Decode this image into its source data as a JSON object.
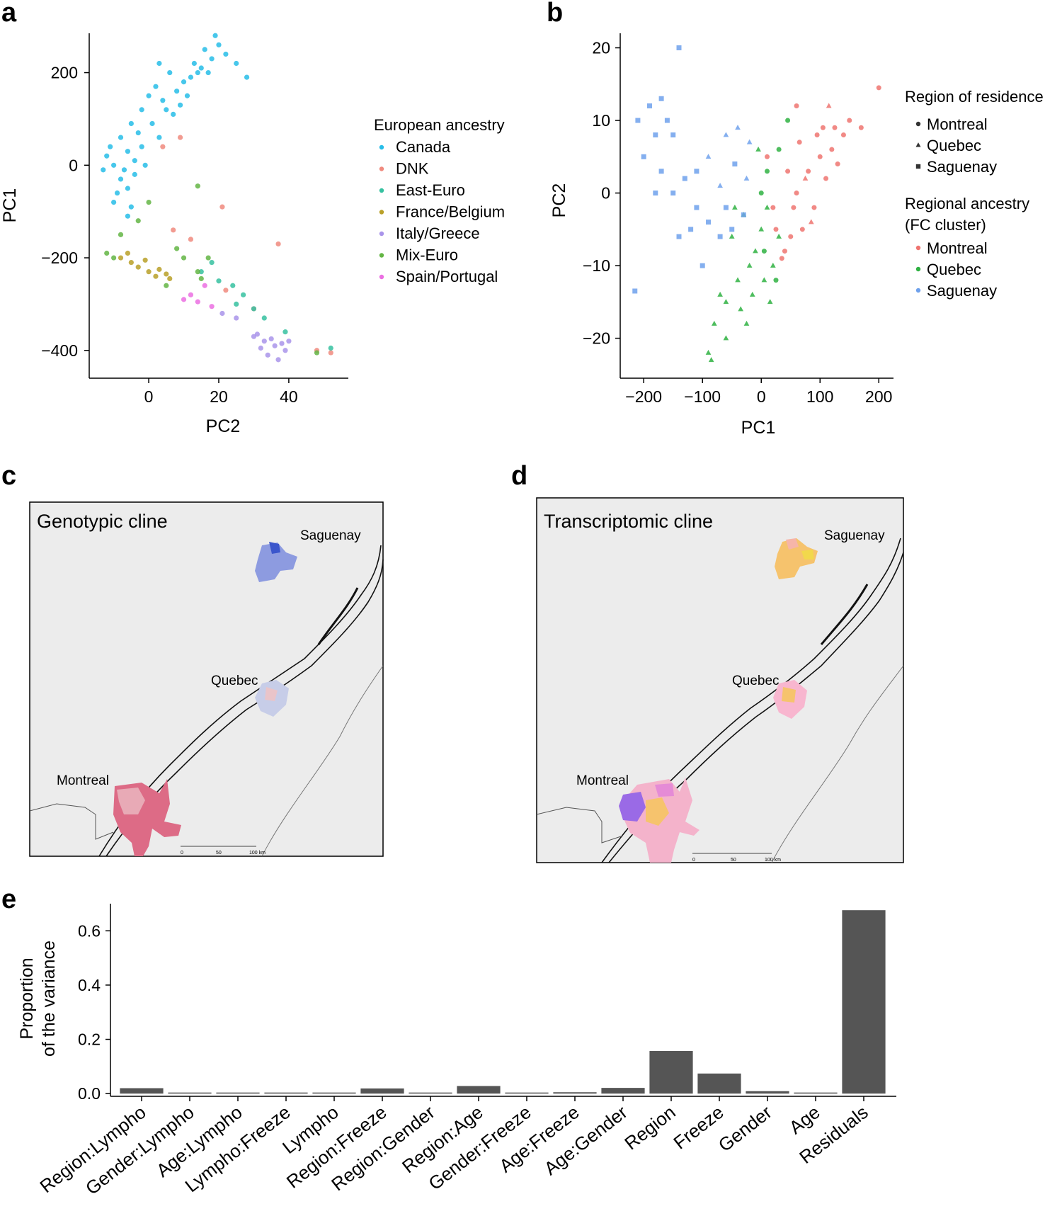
{
  "panels": {
    "a": {
      "letter": "a"
    },
    "b": {
      "letter": "b"
    },
    "c": {
      "letter": "c",
      "title": "Genotypic cline",
      "cities": [
        "Saguenay",
        "Quebec",
        "Montreal"
      ],
      "scalebar": [
        "0",
        "50",
        "100 km"
      ]
    },
    "d": {
      "letter": "d",
      "title": "Transcriptomic cline",
      "cities": [
        "Saguenay",
        "Quebec",
        "Montreal"
      ],
      "scalebar": [
        "0",
        "50",
        "100 km"
      ]
    },
    "e": {
      "letter": "e"
    }
  },
  "colors": {
    "Canada": "#27bde8",
    "DNK": "#f08a7e",
    "East-Euro": "#36c1a0",
    "France/Belgium": "#b9a028",
    "Italy/Greece": "#a994ea",
    "Mix-Euro": "#63b544",
    "Spain/Portugal": "#eb6fe2",
    "reg_Montreal": "#ef7470",
    "reg_Quebec": "#2fb142",
    "reg_Saguenay": "#6ea1ec",
    "bar": "#555555",
    "map_bg": "#ececec"
  },
  "chart_data": [
    {
      "panel": "a",
      "type": "scatter",
      "xlabel": "PC2",
      "ylabel": "PC1",
      "xlim": [
        -17,
        57
      ],
      "ylim": [
        -460,
        285
      ],
      "xticks": [
        0,
        20,
        40
      ],
      "yticks": [
        200,
        0,
        -200,
        -400
      ],
      "ytick_labels": [
        "200",
        "0",
        "−200",
        "−400"
      ],
      "legend_title": "European ancestry",
      "series": [
        {
          "name": "Canada",
          "points": [
            [
              -12,
              20
            ],
            [
              -10,
              0
            ],
            [
              -8,
              -30
            ],
            [
              -6,
              -50
            ],
            [
              -4,
              10
            ],
            [
              -8,
              60
            ],
            [
              -5,
              90
            ],
            [
              -2,
              120
            ],
            [
              0,
              150
            ],
            [
              2,
              170
            ],
            [
              5,
              120
            ],
            [
              8,
              160
            ],
            [
              12,
              190
            ],
            [
              15,
              210
            ],
            [
              18,
              230
            ],
            [
              20,
              260
            ],
            [
              22,
              240
            ],
            [
              25,
              220
            ],
            [
              14,
              200
            ],
            [
              10,
              180
            ],
            [
              6,
              200
            ],
            [
              3,
              220
            ],
            [
              -3,
              70
            ],
            [
              -7,
              -10
            ],
            [
              -9,
              -60
            ],
            [
              -6,
              -110
            ],
            [
              -10,
              -80
            ],
            [
              -4,
              -20
            ],
            [
              -2,
              40
            ],
            [
              1,
              90
            ],
            [
              4,
              140
            ],
            [
              7,
              110
            ],
            [
              9,
              130
            ],
            [
              16,
              250
            ],
            [
              19,
              280
            ],
            [
              28,
              190
            ],
            [
              -13,
              -10
            ],
            [
              -11,
              40
            ],
            [
              -5,
              -90
            ],
            [
              -1,
              0
            ],
            [
              13,
              220
            ],
            [
              17,
              200
            ],
            [
              11,
              150
            ],
            [
              3,
              60
            ],
            [
              -6,
              30
            ]
          ]
        },
        {
          "name": "DNK",
          "points": [
            [
              21,
              -90
            ],
            [
              37,
              -170
            ],
            [
              7,
              -140
            ],
            [
              12,
              -160
            ],
            [
              48,
              -400
            ],
            [
              52,
              -405
            ],
            [
              4,
              40
            ],
            [
              9,
              60
            ],
            [
              30,
              -310
            ],
            [
              22,
              -270
            ]
          ]
        },
        {
          "name": "East-Euro",
          "points": [
            [
              24,
              -260
            ],
            [
              27,
              -280
            ],
            [
              30,
              -310
            ],
            [
              33,
              -330
            ],
            [
              20,
              -250
            ],
            [
              25,
              -300
            ],
            [
              52,
              -395
            ],
            [
              39,
              -360
            ],
            [
              15,
              -230
            ],
            [
              18,
              -210
            ]
          ]
        },
        {
          "name": "France/Belgium",
          "points": [
            [
              -8,
              -200
            ],
            [
              -5,
              -210
            ],
            [
              -3,
              -220
            ],
            [
              0,
              -230
            ],
            [
              2,
              -240
            ],
            [
              5,
              -235
            ],
            [
              -1,
              -205
            ],
            [
              3,
              -225
            ],
            [
              -6,
              -190
            ],
            [
              6,
              -245
            ]
          ]
        },
        {
          "name": "Italy/Greece",
          "points": [
            [
              30,
              -370
            ],
            [
              33,
              -380
            ],
            [
              36,
              -390
            ],
            [
              39,
              -400
            ],
            [
              32,
              -395
            ],
            [
              35,
              -375
            ],
            [
              38,
              -385
            ],
            [
              34,
              -410
            ],
            [
              37,
              -420
            ],
            [
              31,
              -365
            ],
            [
              40,
              -380
            ],
            [
              21,
              -320
            ],
            [
              25,
              -330
            ]
          ]
        },
        {
          "name": "Mix-Euro",
          "points": [
            [
              -12,
              -190
            ],
            [
              -8,
              -150
            ],
            [
              -3,
              -120
            ],
            [
              0,
              -80
            ],
            [
              14,
              -45
            ],
            [
              10,
              -200
            ],
            [
              14,
              -230
            ],
            [
              48,
              -405
            ],
            [
              5,
              -260
            ],
            [
              -10,
              -200
            ],
            [
              8,
              -180
            ],
            [
              17,
              -200
            ],
            [
              15,
              -245
            ]
          ]
        },
        {
          "name": "Spain/Portugal",
          "points": [
            [
              10,
              -290
            ],
            [
              14,
              -295
            ],
            [
              16,
              -260
            ],
            [
              12,
              -280
            ],
            [
              18,
              -305
            ]
          ]
        }
      ]
    },
    {
      "panel": "b",
      "type": "scatter",
      "xlabel": "PC1",
      "ylabel": "PC2",
      "xlim": [
        -240,
        225
      ],
      "ylim": [
        -25.5,
        22
      ],
      "xticks": [
        -200,
        -100,
        0,
        100,
        200
      ],
      "xtick_labels": [
        "−200",
        "−100",
        "0",
        "100",
        "200"
      ],
      "yticks": [
        20,
        10,
        0,
        -10,
        -20
      ],
      "ytick_labels": [
        "20",
        "10",
        "0",
        "−10",
        "−20"
      ],
      "legend_shape_title": "Region of residence",
      "legend_shapes": [
        {
          "name": "Montreal",
          "shape": "circle"
        },
        {
          "name": "Quebec",
          "shape": "triangle"
        },
        {
          "name": "Saguenay",
          "shape": "square"
        }
      ],
      "legend_color_title": [
        "Regional ancestry",
        "(FC cluster)"
      ],
      "legend_colors": [
        "Montreal",
        "Quebec",
        "Saguenay"
      ],
      "series": [
        {
          "name": "Montreal",
          "points": [
            [
              60,
              0,
              "c"
            ],
            [
              80,
              3,
              "c"
            ],
            [
              100,
              5,
              "c"
            ],
            [
              120,
              6,
              "c"
            ],
            [
              140,
              8,
              "c"
            ],
            [
              90,
              -2,
              "c"
            ],
            [
              70,
              -5,
              "c"
            ],
            [
              110,
              2,
              "c"
            ],
            [
              130,
              4,
              "c"
            ],
            [
              50,
              -6,
              "c"
            ],
            [
              40,
              -8,
              "c"
            ],
            [
              150,
              10,
              "c"
            ],
            [
              170,
              9,
              "c"
            ],
            [
              200,
              14.5,
              "c"
            ],
            [
              60,
              12,
              "c"
            ],
            [
              95,
              8,
              "c"
            ],
            [
              115,
              12,
              "t"
            ],
            [
              75,
              2,
              "t"
            ],
            [
              85,
              -4,
              "t"
            ],
            [
              55,
              -2,
              "c"
            ],
            [
              35,
              -9,
              "c"
            ],
            [
              25,
              -5,
              "c"
            ],
            [
              65,
              7,
              "c"
            ],
            [
              105,
              9,
              "c"
            ],
            [
              125,
              9,
              "c"
            ],
            [
              45,
              3,
              "c"
            ],
            [
              20,
              -2,
              "c"
            ],
            [
              10,
              5,
              "c"
            ]
          ]
        },
        {
          "name": "Quebec",
          "points": [
            [
              0,
              -5,
              "t"
            ],
            [
              -20,
              -10,
              "t"
            ],
            [
              -40,
              -12,
              "t"
            ],
            [
              -60,
              -15,
              "t"
            ],
            [
              -80,
              -18,
              "t"
            ],
            [
              -90,
              -22,
              "t"
            ],
            [
              -85,
              -23,
              "t"
            ],
            [
              -30,
              -3,
              "t"
            ],
            [
              -10,
              -8,
              "t"
            ],
            [
              10,
              -2,
              "t"
            ],
            [
              20,
              -10,
              "t"
            ],
            [
              30,
              -6,
              "t"
            ],
            [
              -50,
              -6,
              "t"
            ],
            [
              -70,
              -14,
              "t"
            ],
            [
              -60,
              -20,
              "t"
            ],
            [
              5,
              -12,
              "t"
            ],
            [
              -15,
              -14,
              "t"
            ],
            [
              -25,
              -18,
              "t"
            ],
            [
              15,
              -15,
              "t"
            ],
            [
              0,
              0,
              "c"
            ],
            [
              10,
              3,
              "c"
            ],
            [
              30,
              6,
              "c"
            ],
            [
              45,
              10,
              "c"
            ],
            [
              -5,
              6,
              "t"
            ],
            [
              -45,
              -2,
              "t"
            ],
            [
              -35,
              -16,
              "t"
            ],
            [
              25,
              -12,
              "c"
            ],
            [
              5,
              -8,
              "c"
            ]
          ]
        },
        {
          "name": "Saguenay",
          "points": [
            [
              -210,
              10,
              "s"
            ],
            [
              -190,
              12,
              "s"
            ],
            [
              -170,
              13,
              "s"
            ],
            [
              -160,
              10,
              "s"
            ],
            [
              -150,
              8,
              "s"
            ],
            [
              -180,
              8,
              "s"
            ],
            [
              -140,
              20,
              "s"
            ],
            [
              -200,
              5,
              "s"
            ],
            [
              -170,
              3,
              "s"
            ],
            [
              -150,
              0,
              "s"
            ],
            [
              -130,
              2,
              "s"
            ],
            [
              -110,
              -2,
              "s"
            ],
            [
              -90,
              -4,
              "s"
            ],
            [
              -70,
              -6,
              "s"
            ],
            [
              -50,
              -5,
              "s"
            ],
            [
              -30,
              -3,
              "s"
            ],
            [
              -120,
              -5,
              "s"
            ],
            [
              -100,
              -10,
              "s"
            ],
            [
              -215,
              -13.5,
              "s"
            ],
            [
              -90,
              5,
              "t"
            ],
            [
              -60,
              8,
              "t"
            ],
            [
              -40,
              9,
              "t"
            ],
            [
              -20,
              7,
              "t"
            ],
            [
              -70,
              1,
              "t"
            ],
            [
              -110,
              3,
              "s"
            ],
            [
              -140,
              -6,
              "s"
            ],
            [
              -180,
              0,
              "s"
            ],
            [
              -60,
              -2,
              "s"
            ],
            [
              -25,
              2,
              "t"
            ],
            [
              -45,
              4,
              "s"
            ]
          ]
        }
      ]
    },
    {
      "panel": "e",
      "type": "bar",
      "ylabel": [
        "Proportion",
        "of the variance"
      ],
      "ylim": [
        -0.01,
        0.7
      ],
      "yticks": [
        0.0,
        0.2,
        0.4,
        0.6
      ],
      "ytick_labels": [
        "0.0",
        "0.2",
        "0.4",
        "0.6"
      ],
      "categories": [
        "Region:Lympho",
        "Gender:Lympho",
        "Age:Lympho",
        "Lympho:Freeze",
        "Lympho",
        "Region:Freeze",
        "Region:Gender",
        "Region:Age",
        "Gender:Freeze",
        "Age:Freeze",
        "Age:Gender",
        "Region",
        "Freeze",
        "Gender",
        "Age",
        "Residuals"
      ],
      "values": [
        0.02,
        0.001,
        0.002,
        0.003,
        0.001,
        0.019,
        0.001,
        0.028,
        0.001,
        0.005,
        0.021,
        0.157,
        0.074,
        0.009,
        0.001,
        0.676
      ]
    }
  ]
}
